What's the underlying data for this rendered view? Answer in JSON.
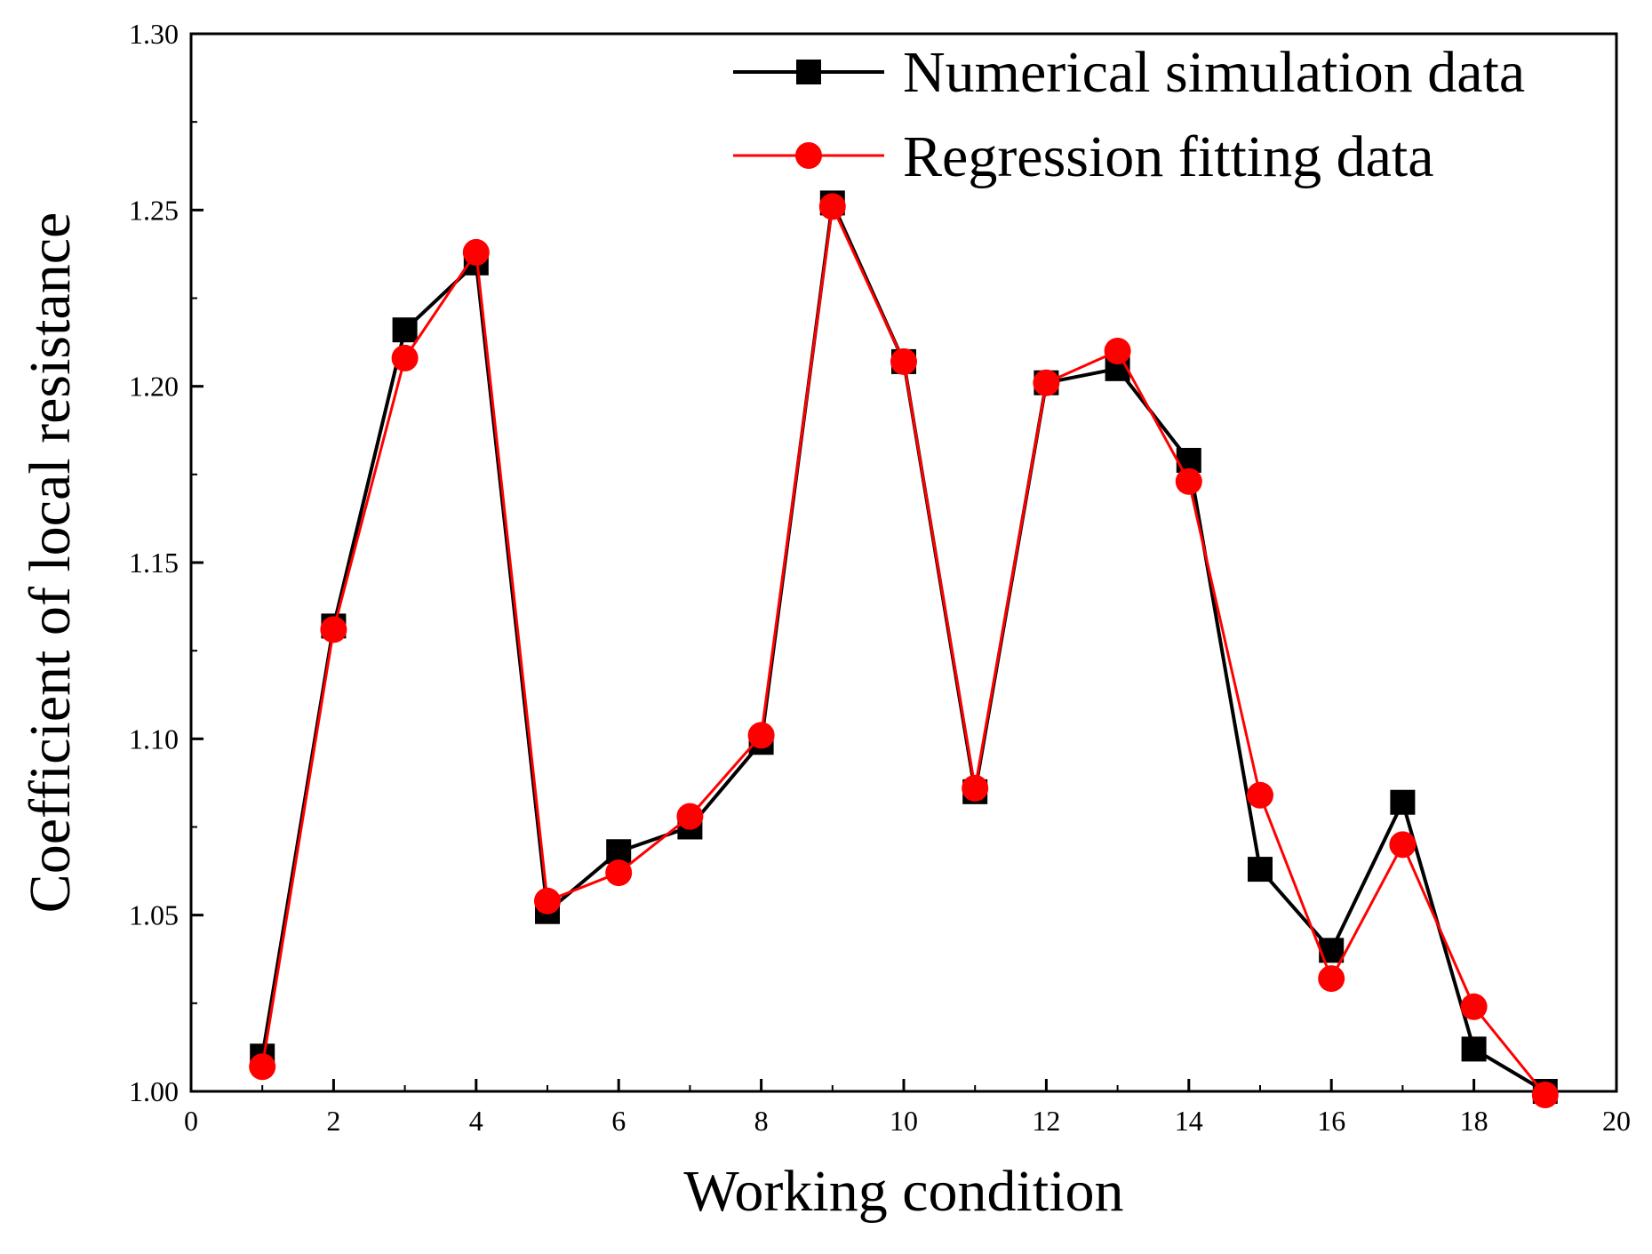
{
  "chart_data": {
    "type": "line",
    "title": "",
    "xlabel": "Working condition",
    "ylabel": "Coefficient of local resistance",
    "xlim": [
      0,
      20
    ],
    "ylim": [
      1.0,
      1.3
    ],
    "x_ticks": [
      0,
      2,
      4,
      6,
      8,
      10,
      12,
      14,
      16,
      18,
      20
    ],
    "x_tick_labels": [
      "0",
      "2",
      "4",
      "6",
      "8",
      "10",
      "12",
      "14",
      "16",
      "18",
      "20"
    ],
    "y_ticks": [
      1.0,
      1.05,
      1.1,
      1.15,
      1.2,
      1.25,
      1.3
    ],
    "y_tick_labels": [
      "1.00",
      "1.05",
      "1.10",
      "1.15",
      "1.20",
      "1.25",
      "1.30"
    ],
    "grid": false,
    "legend_position": "top-right",
    "x": [
      1,
      2,
      3,
      4,
      5,
      6,
      7,
      8,
      9,
      10,
      11,
      12,
      13,
      14,
      15,
      16,
      17,
      18,
      19
    ],
    "series": [
      {
        "name": "Numerical simulation data",
        "color": "#000000",
        "marker": "square",
        "values": [
          1.01,
          1.132,
          1.216,
          1.235,
          1.051,
          1.068,
          1.075,
          1.099,
          1.252,
          1.207,
          1.085,
          1.201,
          1.205,
          1.179,
          1.063,
          1.04,
          1.082,
          1.012,
          1.0
        ]
      },
      {
        "name": "Regression fitting data",
        "color": "#ff0000",
        "marker": "circle",
        "values": [
          1.007,
          1.131,
          1.208,
          1.238,
          1.054,
          1.062,
          1.078,
          1.101,
          1.251,
          1.207,
          1.086,
          1.201,
          1.21,
          1.173,
          1.084,
          1.032,
          1.07,
          1.024,
          0.999
        ]
      }
    ]
  }
}
